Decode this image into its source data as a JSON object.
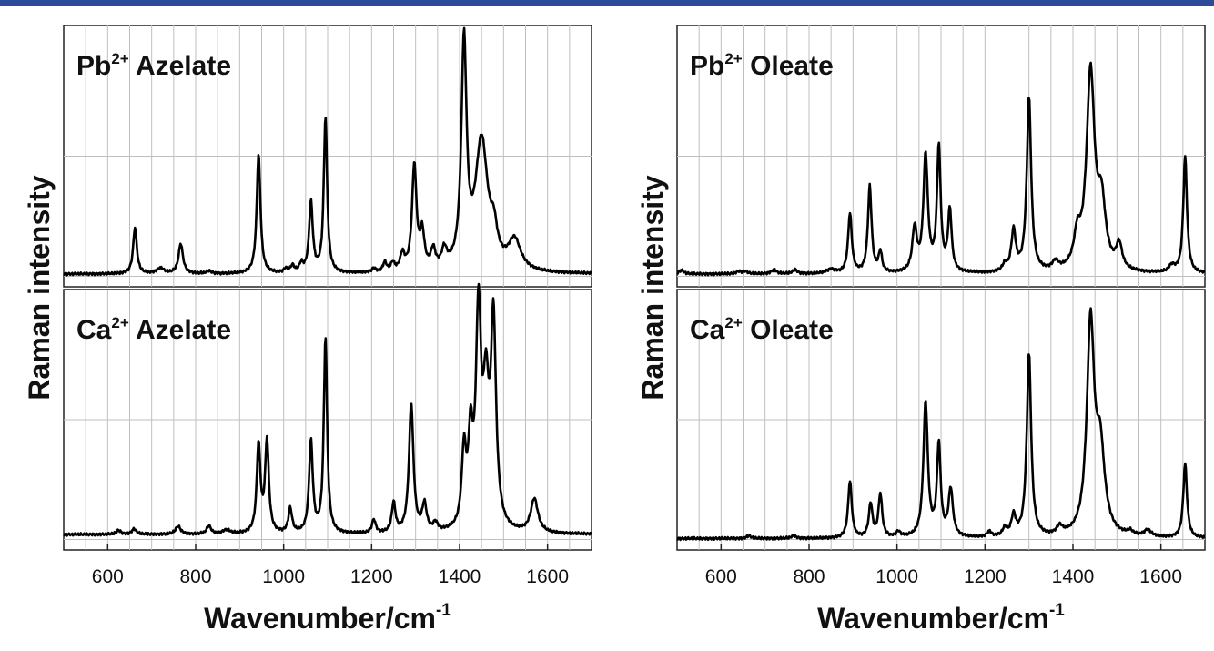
{
  "colors": {
    "top_bar": "#2c4a9a",
    "line": "#000000",
    "grid": "#bfbfbf"
  },
  "chart_data": [
    {
      "type": "line",
      "title": "Pb2+ Azelate",
      "label_main": "Pb",
      "label_sup": "2+",
      "label_rest": " Azelate",
      "xlabel": "Wavenumber/cm",
      "xlabel_sup": "-1",
      "ylabel": "Raman intensity",
      "xlim": [
        500,
        1700
      ],
      "xticks": [
        "600",
        "800",
        "1000",
        "1200",
        "1400",
        "1600"
      ],
      "grid": true,
      "baseline": 0.04,
      "peaks": [
        [
          662,
          0.34,
          5
        ],
        [
          720,
          0.04,
          10
        ],
        [
          766,
          0.22,
          6
        ],
        [
          830,
          0.02,
          6
        ],
        [
          943,
          0.88,
          5
        ],
        [
          1005,
          0.03,
          5
        ],
        [
          1020,
          0.05,
          5
        ],
        [
          1040,
          0.06,
          5
        ],
        [
          1062,
          0.52,
          5
        ],
        [
          1095,
          1.15,
          4.5
        ],
        [
          1205,
          0.03,
          5
        ],
        [
          1230,
          0.07,
          5
        ],
        [
          1248,
          0.06,
          5
        ],
        [
          1270,
          0.12,
          6
        ],
        [
          1297,
          0.78,
          6
        ],
        [
          1315,
          0.26,
          6
        ],
        [
          1340,
          0.14,
          6
        ],
        [
          1365,
          0.13,
          7
        ],
        [
          1410,
          1.65,
          7
        ],
        [
          1450,
          0.95,
          17
        ],
        [
          1478,
          0.2,
          9
        ],
        [
          1525,
          0.22,
          17
        ]
      ]
    },
    {
      "type": "line",
      "title": "Ca2+ Azelate",
      "label_main": "Ca",
      "label_sup": "2+",
      "label_rest": " Azelate",
      "xlim": [
        500,
        1700
      ],
      "xticks": [
        "600",
        "800",
        "1000",
        "1200",
        "1400",
        "1600"
      ],
      "grid": true,
      "baseline": 0.06,
      "peaks": [
        [
          625,
          0.03,
          6
        ],
        [
          660,
          0.04,
          6
        ],
        [
          760,
          0.06,
          7
        ],
        [
          830,
          0.06,
          6
        ],
        [
          870,
          0.03,
          10
        ],
        [
          943,
          0.65,
          5
        ],
        [
          962,
          0.68,
          5
        ],
        [
          1015,
          0.18,
          5
        ],
        [
          1062,
          0.68,
          5
        ],
        [
          1095,
          1.45,
          4.5
        ],
        [
          1205,
          0.1,
          5
        ],
        [
          1250,
          0.22,
          5
        ],
        [
          1290,
          0.95,
          6
        ],
        [
          1320,
          0.2,
          6
        ],
        [
          1345,
          0.06,
          6
        ],
        [
          1410,
          0.55,
          6
        ],
        [
          1425,
          0.6,
          6
        ],
        [
          1443,
          1.55,
          7
        ],
        [
          1460,
          0.9,
          8
        ],
        [
          1477,
          1.5,
          7
        ],
        [
          1570,
          0.25,
          10
        ]
      ]
    },
    {
      "type": "line",
      "title": "Pb2+ Oleate",
      "label_main": "Pb",
      "label_sup": "2+",
      "label_rest": " Oleate",
      "xlabel": "Wavenumber/cm",
      "xlabel_sup": "-1",
      "ylabel": "Raman intensity",
      "xlim": [
        500,
        1700
      ],
      "xticks": [
        "600",
        "800",
        "1000",
        "1200",
        "1400",
        "1600"
      ],
      "grid": true,
      "baseline": 0.04,
      "peaks": [
        [
          510,
          0.03,
          6
        ],
        [
          640,
          0.02,
          6
        ],
        [
          655,
          0.02,
          6
        ],
        [
          720,
          0.03,
          7
        ],
        [
          768,
          0.03,
          6
        ],
        [
          850,
          0.03,
          12
        ],
        [
          893,
          0.44,
          5
        ],
        [
          938,
          0.64,
          5
        ],
        [
          962,
          0.15,
          4.5
        ],
        [
          1040,
          0.32,
          6
        ],
        [
          1065,
          0.86,
          6
        ],
        [
          1095,
          0.92,
          5
        ],
        [
          1120,
          0.45,
          5
        ],
        [
          1245,
          0.05,
          6
        ],
        [
          1265,
          0.3,
          6
        ],
        [
          1300,
          1.28,
          6
        ],
        [
          1360,
          0.06,
          8
        ],
        [
          1410,
          0.22,
          9
        ],
        [
          1440,
          1.45,
          11
        ],
        [
          1465,
          0.45,
          11
        ],
        [
          1505,
          0.18,
          8
        ],
        [
          1625,
          0.05,
          8
        ],
        [
          1655,
          0.86,
          5
        ]
      ]
    },
    {
      "type": "line",
      "title": "Ca2+ Oleate",
      "label_main": "Ca",
      "label_sup": "2+",
      "label_rest": " Oleate",
      "xlim": [
        500,
        1700
      ],
      "xticks": [
        "600",
        "800",
        "1000",
        "1200",
        "1400",
        "1600"
      ],
      "grid": true,
      "baseline": 0.03,
      "peaks": [
        [
          663,
          0.02,
          6
        ],
        [
          765,
          0.02,
          6
        ],
        [
          893,
          0.42,
          5
        ],
        [
          940,
          0.25,
          5
        ],
        [
          962,
          0.32,
          5
        ],
        [
          1003,
          0.04,
          6
        ],
        [
          1065,
          1.0,
          6
        ],
        [
          1095,
          0.68,
          5
        ],
        [
          1122,
          0.35,
          6
        ],
        [
          1210,
          0.04,
          6
        ],
        [
          1245,
          0.06,
          6
        ],
        [
          1265,
          0.15,
          6
        ],
        [
          1300,
          1.35,
          6
        ],
        [
          1370,
          0.06,
          8
        ],
        [
          1440,
          1.55,
          10
        ],
        [
          1462,
          0.6,
          12
        ],
        [
          1530,
          0.03,
          8
        ],
        [
          1570,
          0.05,
          10
        ],
        [
          1655,
          0.55,
          5
        ]
      ]
    }
  ]
}
